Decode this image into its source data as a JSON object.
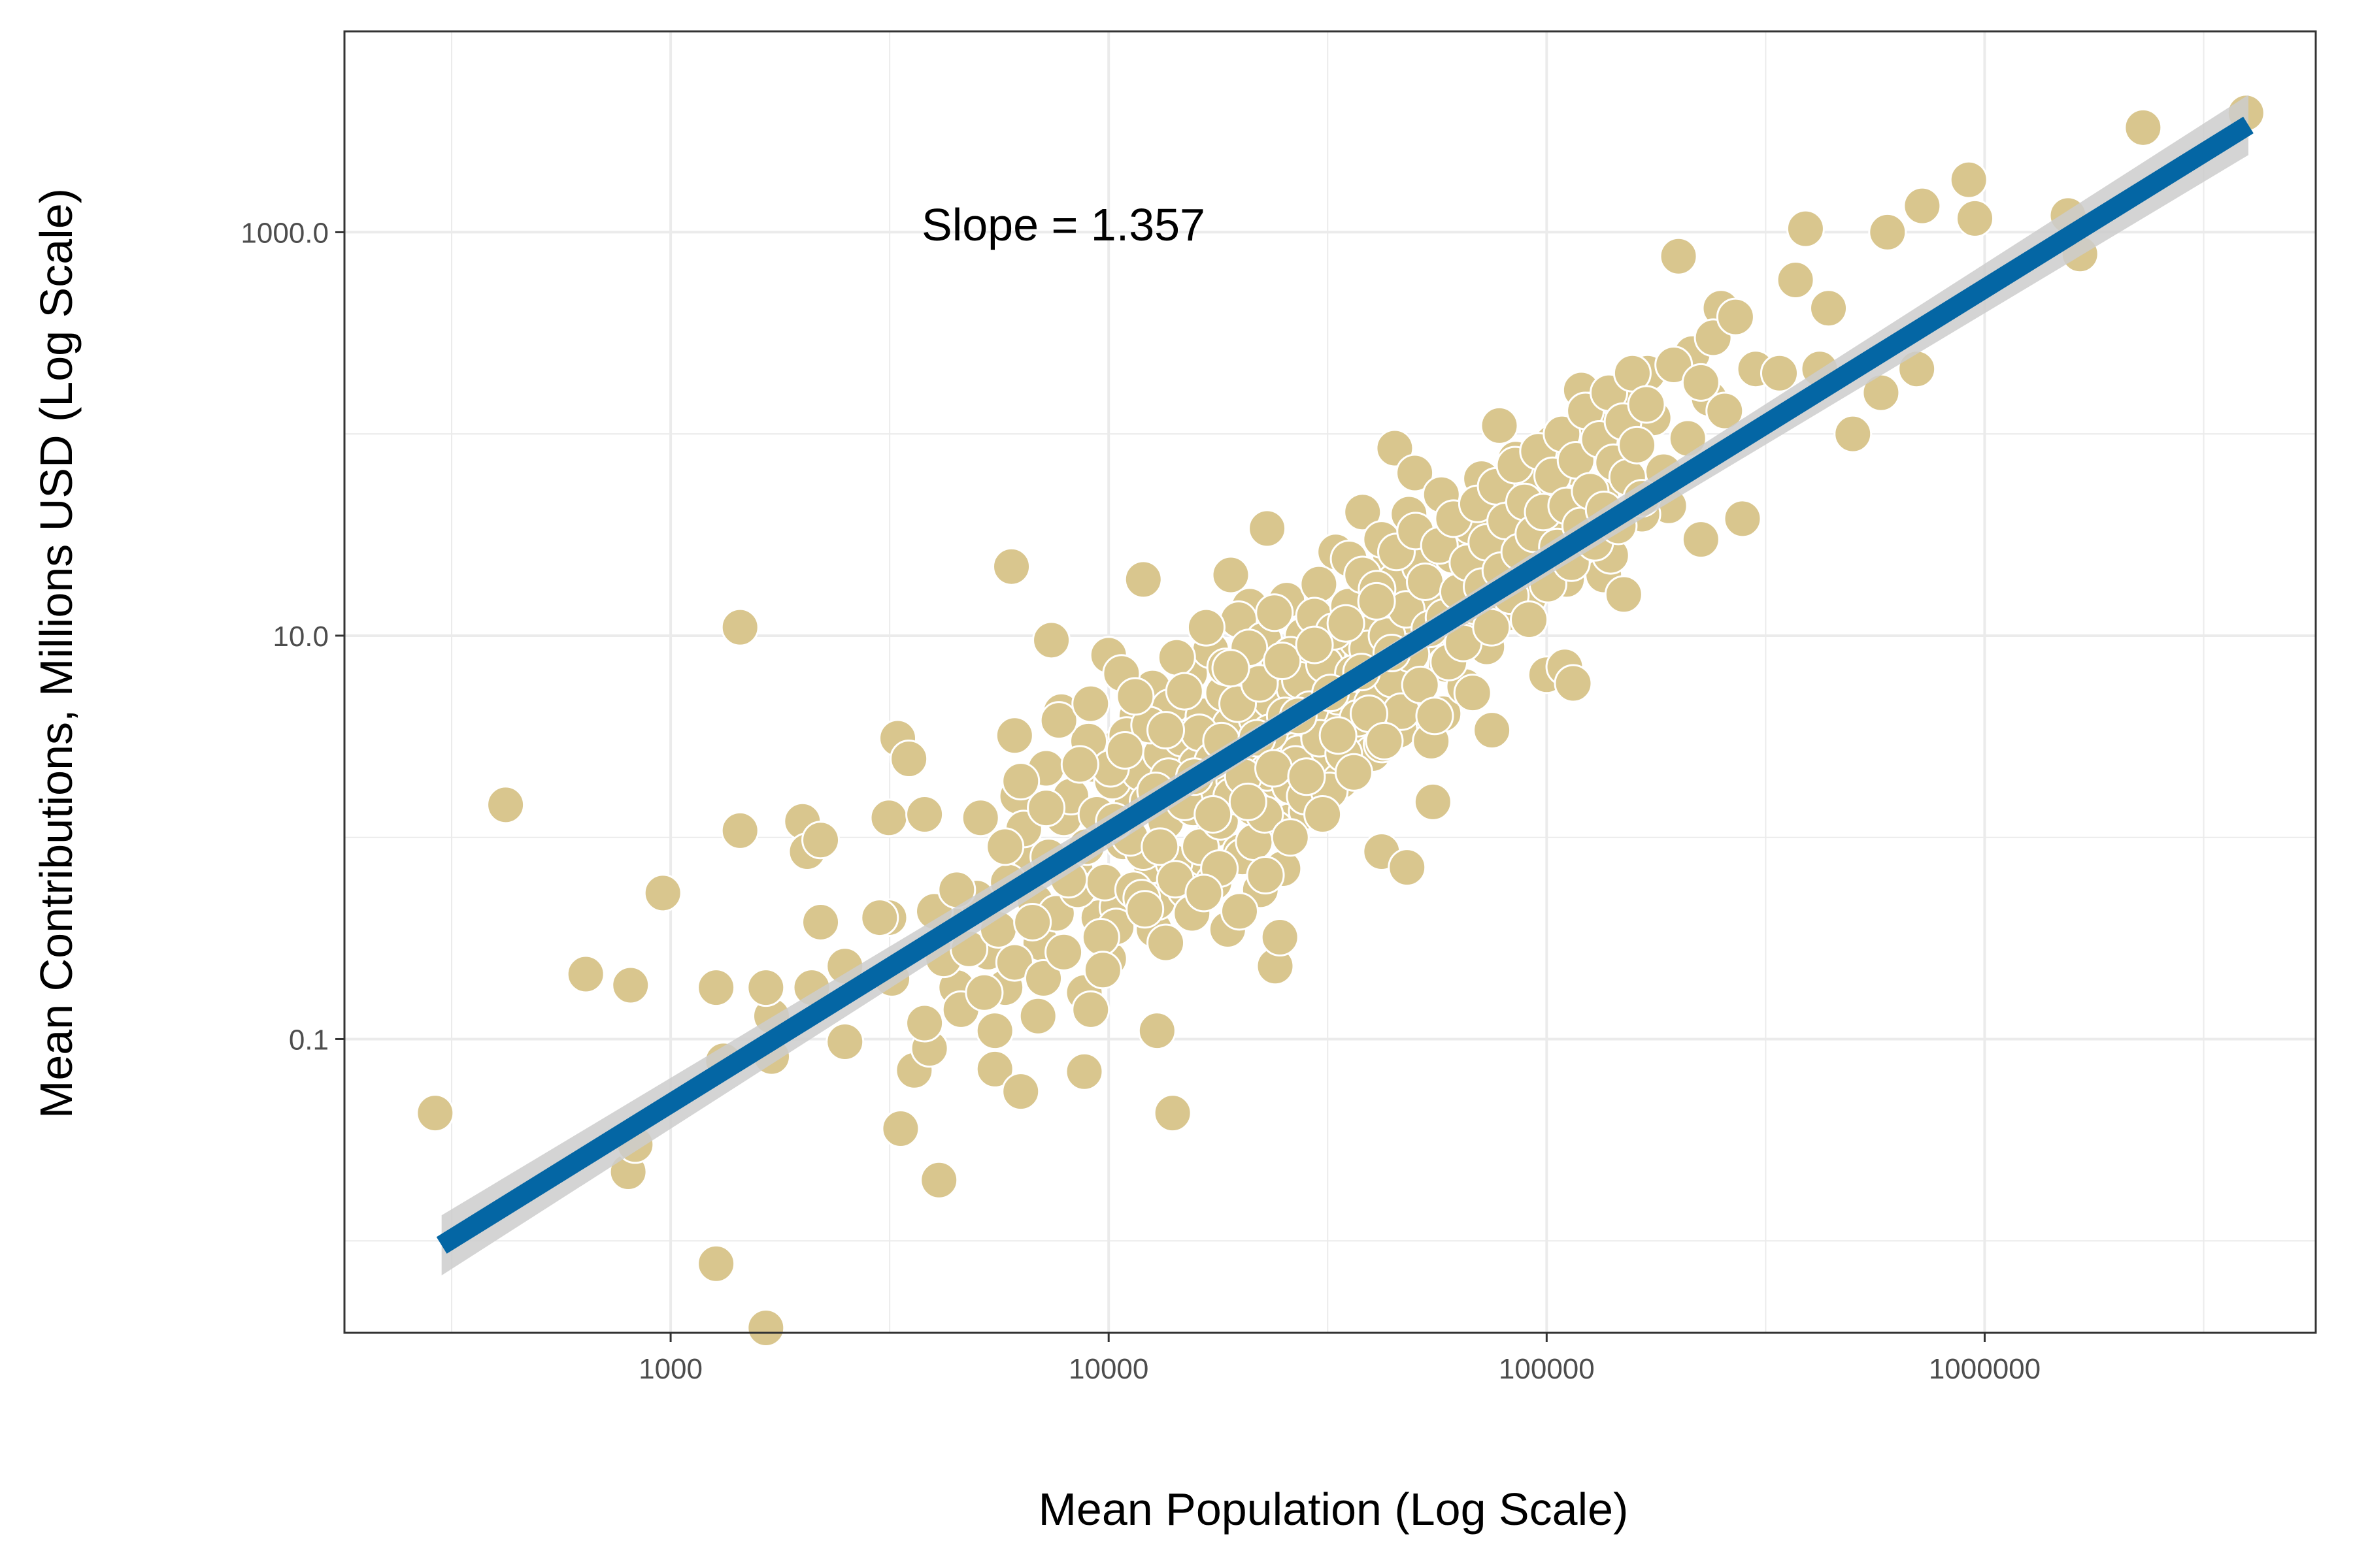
{
  "chart_data": {
    "type": "scatter",
    "title": "",
    "xlabel": "Mean Population (Log Scale)",
    "ylabel": "Mean Contributions, Millions USD (Log Scale)",
    "x_scale": "log10",
    "y_scale": "log10",
    "xlim": [
      180,
      5700000
    ],
    "ylim": [
      0.0035,
      9900
    ],
    "x_ticks": [
      1000,
      10000,
      100000,
      1000000
    ],
    "x_tick_labels": [
      "1000",
      "10000",
      "100000",
      "1000000"
    ],
    "y_ticks": [
      0.1,
      10,
      1000
    ],
    "y_tick_labels": [
      "0.1",
      "10.0",
      "1000.0"
    ],
    "grid": true,
    "legend": "none",
    "annotation": "Slope = 1.357",
    "fit_line": {
      "x": [
        300,
        4000000
      ],
      "y": [
        0.0095,
        3400
      ],
      "slope": 1.357
    },
    "colors": {
      "points": "#d9c68e",
      "point_stroke": "#ffffff",
      "fit_line": "#0466a4",
      "confidence_band": "#cccccc",
      "grid": "#ebebeb",
      "panel_border": "#333333"
    },
    "points": [
      [
        290,
        0.043
      ],
      [
        420,
        1.45
      ],
      [
        640,
        0.21
      ],
      [
        800,
        0.022
      ],
      [
        830,
        0.03
      ],
      [
        810,
        0.185
      ],
      [
        960,
        0.53
      ],
      [
        1270,
        0.18
      ],
      [
        1270,
        0.0077
      ],
      [
        1320,
        0.078
      ],
      [
        1440,
        1.08
      ],
      [
        1440,
        11.0
      ],
      [
        1650,
        0.0037
      ],
      [
        1700,
        0.082
      ],
      [
        1700,
        0.13
      ],
      [
        1650,
        0.18
      ],
      [
        2000,
        1.2
      ],
      [
        2050,
        0.85
      ],
      [
        2100,
        0.18
      ],
      [
        2200,
        0.97
      ],
      [
        2200,
        0.38
      ],
      [
        2500,
        0.097
      ],
      [
        2500,
        0.23
      ],
      [
        3150,
        1.25
      ],
      [
        3150,
        0.4
      ],
      [
        3300,
        3.1
      ],
      [
        3350,
        0.036
      ],
      [
        3500,
        2.45
      ],
      [
        3600,
        0.07
      ],
      [
        3800,
        1.3
      ],
      [
        3900,
        0.09
      ],
      [
        4100,
        0.02
      ],
      [
        4300,
        0.42
      ],
      [
        4500,
        0.18
      ],
      [
        4600,
        0.14
      ],
      [
        5000,
        0.5
      ],
      [
        5100,
        1.25
      ],
      [
        5300,
        0.27
      ],
      [
        5500,
        0.11
      ],
      [
        5500,
        0.071
      ],
      [
        5800,
        0.18
      ],
      [
        6000,
        22.0
      ],
      [
        6100,
        3.2
      ],
      [
        6200,
        1.6
      ],
      [
        6300,
        0.055
      ],
      [
        6700,
        0.75
      ],
      [
        6900,
        0.13
      ],
      [
        7000,
        0.3
      ],
      [
        7200,
        2.2
      ],
      [
        7400,
        9.5
      ],
      [
        7800,
        4.2
      ],
      [
        7900,
        1.25
      ],
      [
        8400,
        0.68
      ],
      [
        8800,
        0.069
      ],
      [
        8800,
        0.17
      ],
      [
        9200,
        2.3
      ],
      [
        9500,
        0.4
      ],
      [
        9700,
        1.05
      ],
      [
        10000,
        0.25
      ],
      [
        10000,
        8.0
      ],
      [
        10500,
        0.45
      ],
      [
        10500,
        2.8
      ],
      [
        11300,
        1.45
      ],
      [
        11600,
        4.0
      ],
      [
        12000,
        19.0
      ],
      [
        12500,
        0.73
      ],
      [
        12700,
        0.35
      ],
      [
        12900,
        0.11
      ],
      [
        13500,
        0.3
      ],
      [
        14000,
        1.8
      ],
      [
        14000,
        0.043
      ],
      [
        15000,
        2.8
      ],
      [
        16500,
        0.68
      ],
      [
        17500,
        1.1
      ],
      [
        18000,
        3.4
      ],
      [
        19000,
        20.0
      ],
      [
        20000,
        0.85
      ],
      [
        21000,
        14.0
      ],
      [
        22000,
        1.7
      ],
      [
        23000,
        34.0
      ],
      [
        24000,
        0.23
      ],
      [
        25000,
        0.7
      ],
      [
        26000,
        1.2
      ],
      [
        28000,
        14.5
      ],
      [
        31000,
        5.0
      ],
      [
        33000,
        26.0
      ],
      [
        36000,
        2.7
      ],
      [
        38000,
        41.0
      ],
      [
        42000,
        0.85
      ],
      [
        44000,
        25.0
      ],
      [
        45000,
        85.0
      ],
      [
        48000,
        0.71
      ],
      [
        50000,
        64.0
      ],
      [
        52000,
        4.1
      ],
      [
        55000,
        1.5
      ],
      [
        58000,
        4.1
      ],
      [
        62000,
        27.0
      ],
      [
        66000,
        18.0
      ],
      [
        70000,
        10.0
      ],
      [
        75000,
        3.4
      ],
      [
        78000,
        110.0
      ],
      [
        85000,
        28.0
      ],
      [
        92000,
        58.0
      ],
      [
        100000,
        6.4
      ],
      [
        110000,
        7.0
      ],
      [
        115000,
        5.8
      ],
      [
        120000,
        165.0
      ],
      [
        125000,
        130.0
      ],
      [
        135000,
        20.0
      ],
      [
        140000,
        75.0
      ],
      [
        150000,
        16.0
      ],
      [
        170000,
        200.0
      ],
      [
        190000,
        44.0
      ],
      [
        200000,
        760.0
      ],
      [
        215000,
        250.0
      ],
      [
        225000,
        30.0
      ],
      [
        235000,
        150.0
      ],
      [
        250000,
        420.0
      ],
      [
        280000,
        38.0
      ],
      [
        300000,
        210.0
      ],
      [
        340000,
        200.0
      ],
      [
        370000,
        580.0
      ],
      [
        390000,
        1040.0
      ],
      [
        420000,
        210.0
      ],
      [
        440000,
        420.0
      ],
      [
        500000,
        100.0
      ],
      [
        580000,
        160.0
      ],
      [
        600000,
        1000.0
      ],
      [
        700000,
        210.0
      ],
      [
        720000,
        1350.0
      ],
      [
        920000,
        1820.0
      ],
      [
        950000,
        1170.0
      ],
      [
        1550000,
        1210.0
      ],
      [
        1650000,
        780.0
      ],
      [
        2300000,
        3300.0
      ],
      [
        3950000,
        3900.0
      ],
      [
        3000,
        0.4
      ],
      [
        3200,
        0.2
      ],
      [
        3800,
        0.12
      ],
      [
        4000,
        0.43
      ],
      [
        4200,
        0.25
      ],
      [
        4500,
        0.55
      ],
      [
        4800,
        0.28
      ],
      [
        5200,
        0.17
      ],
      [
        5600,
        0.35
      ],
      [
        5900,
        0.6
      ],
      [
        6100,
        0.24
      ],
      [
        6400,
        1.1
      ],
      [
        6800,
        0.48
      ],
      [
        7100,
        0.2
      ],
      [
        7300,
        0.8
      ],
      [
        7600,
        0.42
      ],
      [
        7900,
        0.27
      ],
      [
        8200,
        1.6
      ],
      [
        8500,
        0.55
      ],
      [
        8900,
        0.9
      ],
      [
        9100,
        0.14
      ],
      [
        9400,
        1.3
      ],
      [
        9800,
        0.6
      ],
      [
        10200,
        1.9
      ],
      [
        10400,
        0.36
      ],
      [
        10800,
        0.95
      ],
      [
        11000,
        3.2
      ],
      [
        11400,
        0.55
      ],
      [
        11800,
        2.1
      ],
      [
        12000,
        0.85
      ],
      [
        12300,
        1.5
      ],
      [
        12600,
        5.5
      ],
      [
        12900,
        0.48
      ],
      [
        13200,
        2.6
      ],
      [
        13500,
        1.2
      ],
      [
        13800,
        4.4
      ],
      [
        14100,
        0.75
      ],
      [
        14400,
        1.8
      ],
      [
        14700,
        3.1
      ],
      [
        15000,
        0.55
      ],
      [
        15300,
        6.5
      ],
      [
        15600,
        1.4
      ],
      [
        15900,
        2.3
      ],
      [
        16200,
        0.9
      ],
      [
        16500,
        4.0
      ],
      [
        16800,
        1.7
      ],
      [
        17100,
        8.5
      ],
      [
        17400,
        0.6
      ],
      [
        17700,
        2.9
      ],
      [
        18000,
        1.2
      ],
      [
        18300,
        5.2
      ],
      [
        18700,
        0.35
      ],
      [
        19000,
        3.6
      ],
      [
        19400,
        1.9
      ],
      [
        19800,
        12.0
      ],
      [
        20200,
        0.8
      ],
      [
        20600,
        2.5
      ],
      [
        21000,
        6.0
      ],
      [
        21400,
        1.4
      ],
      [
        21800,
        3.9
      ],
      [
        22200,
        0.55
      ],
      [
        22600,
        9.5
      ],
      [
        23000,
        2.1
      ],
      [
        23500,
        4.8
      ],
      [
        24000,
        1.1
      ],
      [
        24500,
        7.2
      ],
      [
        25000,
        3.0
      ],
      [
        25500,
        15.0
      ],
      [
        26000,
        1.8
      ],
      [
        26600,
        5.5
      ],
      [
        27200,
        2.6
      ],
      [
        27800,
        10.0
      ],
      [
        28400,
        1.35
      ],
      [
        29000,
        6.8
      ],
      [
        29600,
        3.6
      ],
      [
        30200,
        18.0
      ],
      [
        30800,
        2.2
      ],
      [
        31500,
        8.0
      ],
      [
        32200,
        4.5
      ],
      [
        33000,
        12.0
      ],
      [
        33800,
        1.9
      ],
      [
        34600,
        6.2
      ],
      [
        35400,
        24.0
      ],
      [
        36200,
        3.2
      ],
      [
        37000,
        9.5
      ],
      [
        38000,
        5.0
      ],
      [
        39000,
        15.5
      ],
      [
        40000,
        2.6
      ],
      [
        41000,
        11.0
      ],
      [
        42000,
        30.0
      ],
      [
        43000,
        4.4
      ],
      [
        44000,
        7.5
      ],
      [
        45000,
        18.5
      ],
      [
        46000,
        3.4
      ],
      [
        47000,
        12.5
      ],
      [
        48500,
        40.0
      ],
      [
        50000,
        5.8
      ],
      [
        51500,
        22.0
      ],
      [
        53000,
        9.0
      ],
      [
        54500,
        3.0
      ],
      [
        56000,
        15.0
      ],
      [
        57500,
        50.0
      ],
      [
        59000,
        7.2
      ],
      [
        61000,
        25.0
      ],
      [
        63000,
        11.5
      ],
      [
        65000,
        5.6
      ],
      [
        67000,
        35.0
      ],
      [
        69000,
        14.0
      ],
      [
        71000,
        60.0
      ],
      [
        73000,
        8.8
      ],
      [
        76000,
        20.0
      ],
      [
        79000,
        45.0
      ],
      [
        82000,
        13.0
      ],
      [
        85000,
        75.0
      ],
      [
        88000,
        30.0
      ],
      [
        91000,
        15.5
      ],
      [
        95000,
        55.0
      ],
      [
        99000,
        22.0
      ],
      [
        103000,
        90.0
      ],
      [
        107000,
        38.0
      ],
      [
        111000,
        19.0
      ],
      [
        116000,
        68.0
      ],
      [
        121000,
        28.0
      ],
      [
        127000,
        110.0
      ],
      [
        133000,
        48.0
      ],
      [
        140000,
        25.0
      ],
      [
        148000,
        85.0
      ],
      [
        156000,
        150.0
      ],
      [
        165000,
        40.0
      ],
      [
        175000,
        120.0
      ],
      [
        185000,
        65.0
      ],
      [
        195000,
        220.0
      ],
      [
        210000,
        95.0
      ],
      [
        225000,
        180.0
      ],
      [
        240000,
        300.0
      ],
      [
        255000,
        130.0
      ],
      [
        270000,
        380.0
      ],
      [
        9000,
        3.0
      ],
      [
        9600,
        0.32
      ],
      [
        10100,
        2.2
      ],
      [
        10700,
        6.5
      ],
      [
        11200,
        1.0
      ],
      [
        11900,
        0.5
      ],
      [
        12400,
        3.6
      ],
      [
        13100,
        0.9
      ],
      [
        13700,
        2.0
      ],
      [
        14300,
        7.8
      ],
      [
        14900,
        1.5
      ],
      [
        15500,
        0.42
      ],
      [
        16100,
        3.3
      ],
      [
        16700,
        11.0
      ],
      [
        17300,
        2.4
      ],
      [
        17900,
        0.7
      ],
      [
        18500,
        7.0
      ],
      [
        19100,
        1.6
      ],
      [
        19700,
        4.6
      ],
      [
        20300,
        2.0
      ],
      [
        20900,
        8.7
      ],
      [
        21500,
        0.95
      ],
      [
        22100,
        5.8
      ],
      [
        22700,
        1.3
      ],
      [
        23300,
        3.3
      ],
      [
        23900,
        13.0
      ],
      [
        24600,
        0.32
      ],
      [
        25300,
        4.0
      ],
      [
        26000,
        8.0
      ],
      [
        26700,
        2.3
      ],
      [
        27400,
        6.0
      ],
      [
        28100,
        1.6
      ],
      [
        28800,
        4.3
      ],
      [
        29500,
        12.5
      ],
      [
        30300,
        3.1
      ],
      [
        31100,
        7.2
      ],
      [
        31900,
        1.7
      ],
      [
        32700,
        10.5
      ],
      [
        33500,
        5.0
      ],
      [
        34400,
        2.6
      ],
      [
        35300,
        14.0
      ],
      [
        36200,
        6.5
      ],
      [
        37100,
        3.9
      ],
      [
        38000,
        20.0
      ],
      [
        39000,
        8.6
      ],
      [
        40000,
        4.6
      ],
      [
        41000,
        17.0
      ],
      [
        42100,
        2.9
      ],
      [
        43200,
        10.0
      ],
      [
        44300,
        6.1
      ],
      [
        45400,
        26.0
      ],
      [
        46600,
        4.2
      ],
      [
        47800,
        13.5
      ],
      [
        49000,
        8.1
      ],
      [
        50200,
        33.0
      ],
      [
        51500,
        5.7
      ],
      [
        52800,
        18.5
      ],
      [
        54100,
        10.8
      ],
      [
        55500,
        4.0
      ],
      [
        56900,
        28.0
      ],
      [
        58300,
        12.3
      ],
      [
        59800,
        7.4
      ],
      [
        61300,
        38.0
      ],
      [
        62900,
        16.5
      ],
      [
        64500,
        9.2
      ],
      [
        66100,
        23.0
      ],
      [
        67800,
        5.2
      ],
      [
        69500,
        45.0
      ],
      [
        71200,
        17.5
      ],
      [
        73000,
        29.0
      ],
      [
        74800,
        11.0
      ],
      [
        76700,
        55.0
      ],
      [
        78600,
        21.0
      ],
      [
        80600,
        37.0
      ],
      [
        82600,
        15.8
      ],
      [
        84700,
        70.0
      ],
      [
        86800,
        26.0
      ],
      [
        89000,
        46.0
      ],
      [
        91200,
        12.0
      ],
      [
        93500,
        32.0
      ],
      [
        95800,
        82.0
      ],
      [
        98200,
        41.0
      ],
      [
        100700,
        18.0
      ],
      [
        103200,
        62.0
      ],
      [
        105800,
        27.5
      ],
      [
        108400,
        100.0
      ],
      [
        111100,
        44.0
      ],
      [
        113900,
        23.0
      ],
      [
        116700,
        74.0
      ],
      [
        119600,
        35.0
      ],
      [
        122600,
        130.0
      ],
      [
        125700,
        52.0
      ],
      [
        128800,
        29.0
      ],
      [
        132000,
        94.0
      ],
      [
        135300,
        42.0
      ],
      [
        138700,
        160.0
      ],
      [
        142200,
        72.0
      ],
      [
        145700,
        35.0
      ],
      [
        149400,
        115.0
      ],
      [
        153100,
        61.0
      ],
      [
        156900,
        200.0
      ],
      [
        160800,
        88.0
      ],
      [
        164900,
        48.0
      ],
      [
        169000,
        140.0
      ],
      [
        5800,
        0.9
      ],
      [
        6300,
        1.9
      ],
      [
        6700,
        0.38
      ],
      [
        7200,
        1.4
      ],
      [
        7700,
        3.8
      ],
      [
        8100,
        0.62
      ],
      [
        8600,
        2.3
      ],
      [
        9100,
        4.6
      ],
      [
        9700,
        0.22
      ],
      [
        10300,
        1.2
      ],
      [
        10900,
        2.7
      ],
      [
        11500,
        5.0
      ],
      [
        12100,
        0.44
      ],
      [
        12800,
        1.7
      ],
      [
        13500,
        3.4
      ],
      [
        14200,
        0.62
      ],
      [
        14900,
        5.3
      ],
      [
        15700,
        2.0
      ],
      [
        16500,
        0.53
      ],
      [
        17300,
        1.3
      ],
      [
        18100,
        3.0
      ],
      [
        19000,
        6.9
      ],
      [
        19900,
        0.43
      ],
      [
        20800,
        1.5
      ],
      [
        21800,
        3.1
      ],
      [
        22800,
        0.65
      ],
      [
        23800,
        2.2
      ],
      [
        24900,
        7.5
      ],
      [
        26000,
        1.0
      ],
      [
        27100,
        4.0
      ],
      [
        28300,
        2.0
      ],
      [
        29500,
        9.0
      ],
      [
        30800,
        1.3
      ],
      [
        32100,
        5.2
      ],
      [
        33400,
        3.2
      ],
      [
        34800,
        11.5
      ],
      [
        36300,
        2.1
      ],
      [
        37800,
        6.6
      ],
      [
        39300,
        4.1
      ],
      [
        40900,
        14.8
      ],
      [
        42600,
        3.0
      ],
      [
        44300,
        8.2
      ]
    ]
  }
}
